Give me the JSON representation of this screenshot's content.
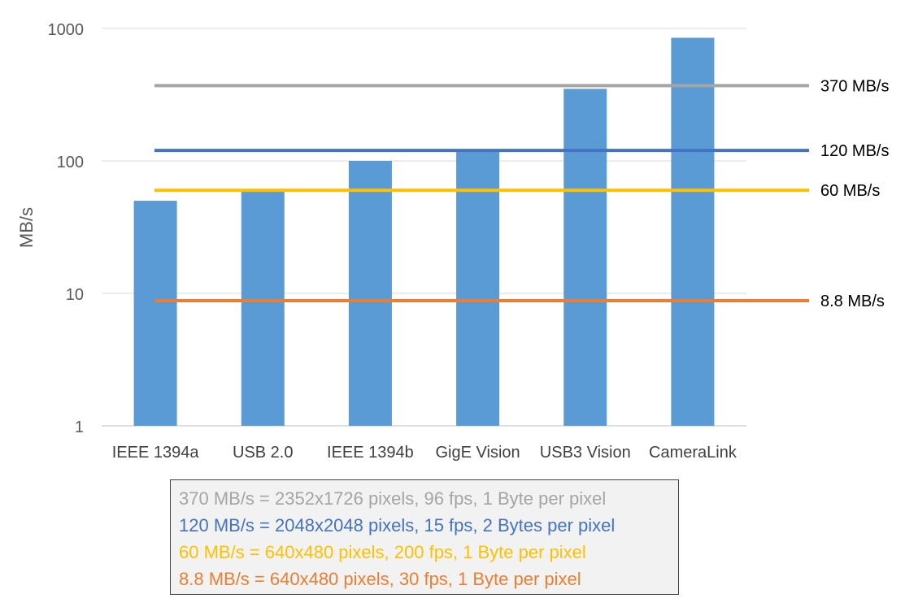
{
  "chart_data": {
    "type": "bar",
    "ylabel": "MB/s",
    "xlabel": "",
    "yscale": "log",
    "ylim": [
      1,
      1000
    ],
    "yticks": [
      "1",
      "10",
      "100",
      "1000"
    ],
    "grid": true,
    "categories": [
      "IEEE 1394a",
      "USB 2.0",
      "IEEE 1394b",
      "GigE Vision",
      "USB3 Vision",
      "CameraLink"
    ],
    "values": [
      50,
      60,
      100,
      120,
      350,
      850
    ],
    "bar_color": "#5b9bd5",
    "reference_lines": [
      {
        "value": 370,
        "label": "370 MB/s",
        "color": "#a5a5a5"
      },
      {
        "value": 120,
        "label": "120 MB/s",
        "color": "#4472c4"
      },
      {
        "value": 60,
        "label": "60 MB/s",
        "color": "#ffc000"
      },
      {
        "value": 8.8,
        "label": "8.8 MB/s",
        "color": "#ed7d31"
      }
    ]
  },
  "legend": {
    "lines": [
      {
        "text": "370 MB/s = 2352x1726 pixels, 96 fps, 1 Byte per pixel",
        "color": "#a5a5a5"
      },
      {
        "text": "120 MB/s = 2048x2048 pixels, 15 fps, 2 Bytes per pixel",
        "color": "#4472c4"
      },
      {
        "text": "60 MB/s = 640x480 pixels, 200 fps, 1 Byte per pixel",
        "color": "#ffc000"
      },
      {
        "text": "8.8 MB/s = 640x480 pixels, 30 fps, 1 Byte per pixel",
        "color": "#ed7d31"
      }
    ]
  }
}
